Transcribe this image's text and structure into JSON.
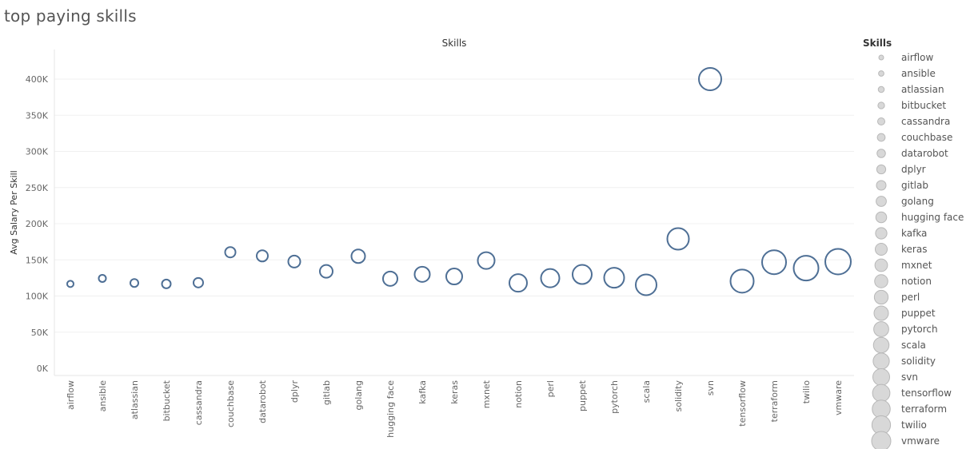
{
  "page": {
    "title": "top paying skills"
  },
  "legend": {
    "title": "Skills"
  },
  "chart_data": {
    "type": "scatter",
    "title": "Skills",
    "xlabel": "",
    "ylabel": "Avg Salary Per Skill",
    "ylim": [
      0,
      440000
    ],
    "yticks": [
      0,
      50000,
      100000,
      150000,
      200000,
      250000,
      300000,
      350000,
      400000
    ],
    "ytick_labels": [
      "0K",
      "50K",
      "100K",
      "150K",
      "200K",
      "250K",
      "300K",
      "350K",
      "400K"
    ],
    "grid": true,
    "legend_position": "right",
    "mark_color": "#4e6f95",
    "legend_mark_color": "#d8d8d8",
    "size_encoding": "category order",
    "categories": [
      "airflow",
      "ansible",
      "atlassian",
      "bitbucket",
      "cassandra",
      "couchbase",
      "datarobot",
      "dplyr",
      "gitlab",
      "golang",
      "hugging face",
      "kafka",
      "keras",
      "mxnet",
      "notion",
      "perl",
      "puppet",
      "pytorch",
      "scala",
      "solidity",
      "svn",
      "tensorflow",
      "terraform",
      "twilio",
      "vmware"
    ],
    "values": [
      116753,
      124370,
      117979,
      116712,
      118407,
      160515,
      155486,
      147633,
      134126,
      155000,
      123950,
      129999,
      127013,
      149000,
      118092,
      124686,
      129820,
      125226,
      115480,
      179000,
      400000,
      120647,
      146734,
      138500,
      147500
    ]
  }
}
